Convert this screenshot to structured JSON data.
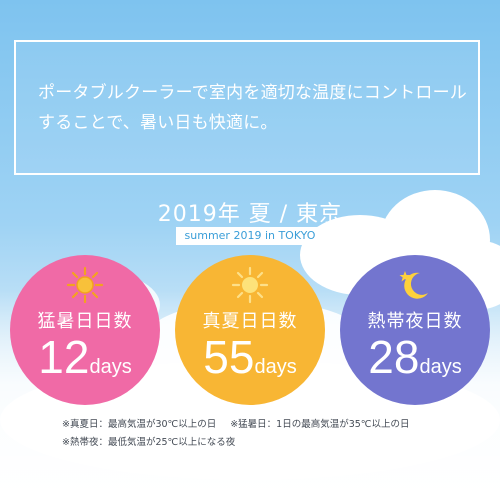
{
  "message": {
    "line1": "ポータブルクーラーで室内を適切な温度にコントロール",
    "line2": "することで、暑い日も快適に。"
  },
  "heading": "2019年 夏 / 東京",
  "subheading": "summer 2019 in TOKYO",
  "stats": [
    {
      "label": "猛暑日日数",
      "value": "12",
      "unit": "days",
      "icon": "sun-icon",
      "color": "#f06aa6"
    },
    {
      "label": "真夏日日数",
      "value": "55",
      "unit": "days",
      "icon": "sun-icon",
      "color": "#f8b634"
    },
    {
      "label": "熱帯夜日数",
      "value": "28",
      "unit": "days",
      "icon": "moon-star-icon",
      "color": "#7375cf"
    }
  ],
  "notes": {
    "note1": "※真夏日：最高気温が30℃以上の日",
    "note2": "※猛暑日：1日の最高気温が35℃以上の日",
    "note3": "※熱帯夜：最低気温が25℃以上になる夜"
  }
}
